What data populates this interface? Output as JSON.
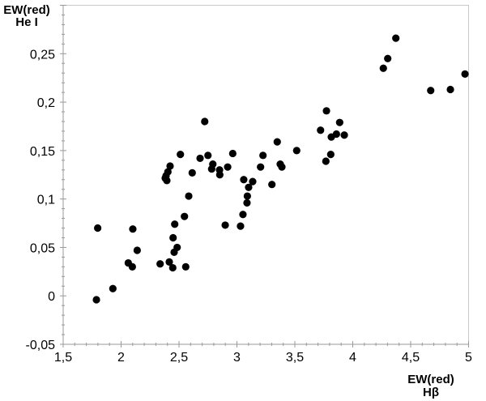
{
  "chart_data": {
    "type": "scatter",
    "title": "",
    "xlabel": [
      "EW(red)",
      "Hβ"
    ],
    "ylabel": [
      "EW(red)",
      "He I"
    ],
    "xlim": [
      1.5,
      5
    ],
    "ylim": [
      -0.05,
      0.3
    ],
    "x_ticks": [
      1.5,
      2,
      2.5,
      3,
      3.5,
      4,
      4.5,
      5
    ],
    "x_tick_labels": [
      "1,5",
      "2",
      "2,5",
      "3",
      "3,5",
      "4",
      "4,5",
      "5"
    ],
    "y_ticks": [
      -0.05,
      0,
      0.05,
      0.1,
      0.15,
      0.2,
      0.25
    ],
    "y_tick_labels": [
      "-0,05",
      "0",
      "0,05",
      "0,1",
      "0,15",
      "0,2",
      "0,25"
    ],
    "grid": false,
    "marker_color": "#000000",
    "axis_color": "#999999",
    "points": [
      [
        1.787,
        -0.004
      ],
      [
        1.798,
        0.07
      ],
      [
        1.929,
        0.0075
      ],
      [
        2.062,
        0.034
      ],
      [
        2.097,
        0.03
      ],
      [
        2.101,
        0.069
      ],
      [
        2.139,
        0.047
      ],
      [
        2.337,
        0.033
      ],
      [
        2.416,
        0.035
      ],
      [
        2.446,
        0.029
      ],
      [
        2.558,
        0.03
      ],
      [
        2.458,
        0.045
      ],
      [
        2.484,
        0.05
      ],
      [
        2.449,
        0.06
      ],
      [
        2.463,
        0.074
      ],
      [
        2.547,
        0.082
      ],
      [
        2.584,
        0.103
      ],
      [
        2.614,
        0.127
      ],
      [
        2.423,
        0.134
      ],
      [
        2.404,
        0.128
      ],
      [
        2.388,
        0.124
      ],
      [
        2.381,
        0.1215
      ],
      [
        2.395,
        0.119
      ],
      [
        2.512,
        0.146
      ],
      [
        2.722,
        0.18
      ],
      [
        2.682,
        0.142
      ],
      [
        2.75,
        0.145
      ],
      [
        2.792,
        0.136
      ],
      [
        2.782,
        0.131
      ],
      [
        2.85,
        0.13
      ],
      [
        2.852,
        0.125
      ],
      [
        2.92,
        0.133
      ],
      [
        2.964,
        0.147
      ],
      [
        2.899,
        0.073
      ],
      [
        3.031,
        0.072
      ],
      [
        3.052,
        0.084
      ],
      [
        3.087,
        0.096
      ],
      [
        3.09,
        0.103
      ],
      [
        3.101,
        0.112
      ],
      [
        3.059,
        0.12
      ],
      [
        3.136,
        0.118
      ],
      [
        3.204,
        0.133
      ],
      [
        3.225,
        0.145
      ],
      [
        3.302,
        0.115
      ],
      [
        3.348,
        0.159
      ],
      [
        3.374,
        0.136
      ],
      [
        3.388,
        0.133
      ],
      [
        3.516,
        0.15
      ],
      [
        3.722,
        0.171
      ],
      [
        3.773,
        0.191
      ],
      [
        3.768,
        0.139
      ],
      [
        3.81,
        0.146
      ],
      [
        3.815,
        0.164
      ],
      [
        3.859,
        0.167
      ],
      [
        3.887,
        0.179
      ],
      [
        3.927,
        0.166
      ],
      [
        4.264,
        0.235
      ],
      [
        4.302,
        0.245
      ],
      [
        4.372,
        0.266
      ],
      [
        4.673,
        0.212
      ],
      [
        4.843,
        0.213
      ],
      [
        4.969,
        0.229
      ]
    ]
  }
}
